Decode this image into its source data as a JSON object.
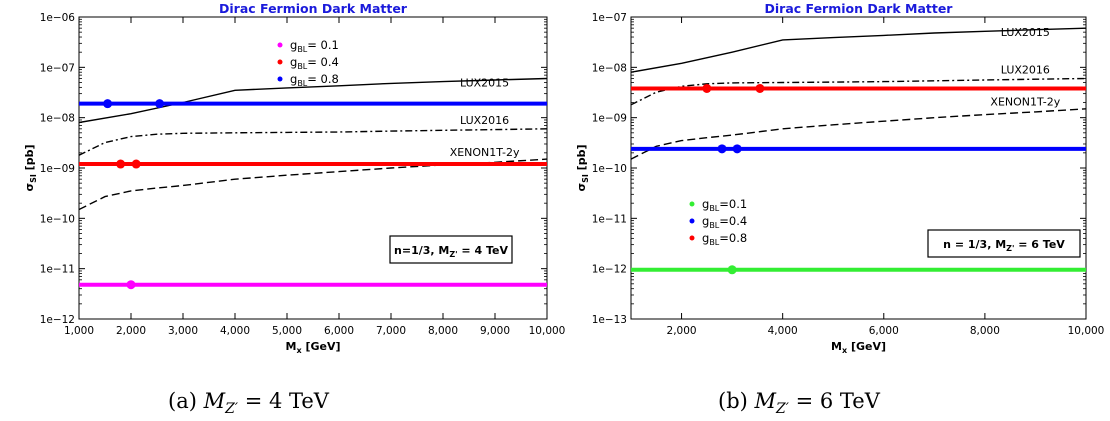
{
  "colors": {
    "title": "#1a1adb",
    "magenta": "#ff00ff",
    "red": "#ff0000",
    "blue": "#0000ff",
    "green": "#33ee33"
  },
  "chart_data": [
    {
      "type": "line",
      "title": "Dirac Fermion Dark Matter",
      "xlabel_main": "M",
      "xlabel_sub": "x",
      "xlabel_unit": " [GeV]",
      "ylabel_main": "σ",
      "ylabel_sub": "SI",
      "ylabel_unit": " [pb]",
      "yscale": "log",
      "xlim": [
        1000,
        10000
      ],
      "ylim_exp": [
        -12,
        -6
      ],
      "x_ticks": [
        1000,
        2000,
        3000,
        4000,
        5000,
        6000,
        7000,
        8000,
        9000,
        10000
      ],
      "x_tick_labels": [
        "1,000",
        "2,000",
        "3,000",
        "4,000",
        "5,000",
        "6,000",
        "7,000",
        "8,000",
        "9,000",
        "10,000"
      ],
      "y_tick_labels": [
        "1e−12",
        "1e−11",
        "1e−10",
        "1e−09",
        "1e−08",
        "1e−07",
        "1e−06"
      ],
      "curves": [
        {
          "name": "LUX2015",
          "style": "solid",
          "label_at": [
            8800,
            4.2e-08
          ],
          "x": [
            1000,
            2000,
            3000,
            4000,
            5000,
            6000,
            7000,
            8000,
            9000,
            10000
          ],
          "y": [
            8e-09,
            1.2e-08,
            2e-08,
            3.5e-08,
            3.9e-08,
            4.3e-08,
            4.8e-08,
            5.2e-08,
            5.6e-08,
            6e-08
          ]
        },
        {
          "name": "LUX2016",
          "style": "dashdot",
          "label_at": [
            8800,
            7.5e-09
          ],
          "x": [
            1000,
            1500,
            2000,
            2500,
            3000,
            4000,
            5000,
            6000,
            7000,
            8000,
            9000,
            10000
          ],
          "y": [
            1.8e-09,
            3.2e-09,
            4.2e-09,
            4.7e-09,
            4.9e-09,
            5e-09,
            5.1e-09,
            5.2e-09,
            5.4e-09,
            5.6e-09,
            5.8e-09,
            6e-09
          ]
        },
        {
          "name": "XENON1T-2y",
          "style": "dashed",
          "label_at": [
            8800,
            1.75e-09
          ],
          "x": [
            1000,
            1500,
            2000,
            2500,
            3000,
            4000,
            5000,
            6000,
            7000,
            8000,
            9000,
            10000
          ],
          "y": [
            1.5e-10,
            2.7e-10,
            3.5e-10,
            4e-10,
            4.5e-10,
            6e-10,
            7.2e-10,
            8.5e-10,
            1e-09,
            1.15e-09,
            1.3e-09,
            1.5e-09
          ]
        }
      ],
      "series": [
        {
          "name": "= 0.1",
          "legend_main": "g",
          "legend_sub": "BL",
          "color": "#ff00ff",
          "y": 4.8e-12,
          "points": [
            2000
          ]
        },
        {
          "name": "= 0.4",
          "legend_main": "g",
          "legend_sub": "BL",
          "color": "#ff0000",
          "y": 1.2e-09,
          "points": [
            1800,
            2100
          ]
        },
        {
          "name": "= 0.8",
          "legend_main": "g",
          "legend_sub": "BL",
          "color": "#0000ff",
          "y": 1.9e-08,
          "points": [
            1550,
            2550
          ]
        }
      ],
      "legend_placement": "top-center",
      "box_main": "n=1/3, M",
      "box_sub": "Z'",
      "box_unit": " = 4 TeV",
      "grid": false
    },
    {
      "type": "line",
      "title": "Dirac Fermion Dark Matter",
      "xlabel_main": "M",
      "xlabel_sub": "x",
      "xlabel_unit": " [GeV]",
      "ylabel_main": "σ",
      "ylabel_sub": "SI",
      "ylabel_unit": " [pb]",
      "yscale": "log",
      "xlim": [
        1000,
        10000
      ],
      "ylim_exp": [
        -13,
        -7
      ],
      "x_ticks": [
        2000,
        4000,
        6000,
        8000,
        10000
      ],
      "x_tick_labels": [
        "2,000",
        "4,000",
        "6,000",
        "8,000",
        "10,000"
      ],
      "y_tick_labels": [
        "1e−13",
        "1e−12",
        "1e−11",
        "1e−10",
        "1e−09",
        "1e−08",
        "1e−07"
      ],
      "curves": [
        {
          "name": "LUX2015",
          "style": "solid",
          "label_at": [
            8800,
            4.2e-08
          ],
          "x": [
            1000,
            2000,
            3000,
            4000,
            5000,
            6000,
            7000,
            8000,
            9000,
            10000
          ],
          "y": [
            8e-09,
            1.2e-08,
            2e-08,
            3.5e-08,
            3.9e-08,
            4.3e-08,
            4.8e-08,
            5.2e-08,
            5.6e-08,
            6e-08
          ]
        },
        {
          "name": "LUX2016",
          "style": "dashdot",
          "label_at": [
            8800,
            7.5e-09
          ],
          "x": [
            1000,
            1500,
            2000,
            2500,
            3000,
            4000,
            5000,
            6000,
            7000,
            8000,
            9000,
            10000
          ],
          "y": [
            1.8e-09,
            3.2e-09,
            4.2e-09,
            4.7e-09,
            4.9e-09,
            5e-09,
            5.1e-09,
            5.2e-09,
            5.4e-09,
            5.6e-09,
            5.8e-09,
            6e-09
          ]
        },
        {
          "name": "XENON1T-2y",
          "style": "dashed",
          "label_at": [
            8800,
            1.75e-09
          ],
          "x": [
            1000,
            1500,
            2000,
            2500,
            3000,
            4000,
            5000,
            6000,
            7000,
            8000,
            9000,
            10000
          ],
          "y": [
            1.5e-10,
            2.7e-10,
            3.5e-10,
            4e-10,
            4.5e-10,
            6e-10,
            7.2e-10,
            8.5e-10,
            1e-09,
            1.15e-09,
            1.3e-09,
            1.5e-09
          ]
        }
      ],
      "series": [
        {
          "name": "=0.1",
          "legend_main": "g",
          "legend_sub": "BL",
          "color": "#33ee33",
          "y": 9.5e-13,
          "points": [
            3000
          ]
        },
        {
          "name": "=0.4",
          "legend_main": "g",
          "legend_sub": "BL",
          "color": "#0000ff",
          "y": 2.4e-10,
          "points": [
            2800,
            3100
          ]
        },
        {
          "name": "=0.8",
          "legend_main": "g",
          "legend_sub": "BL",
          "color": "#ff0000",
          "y": 3.8e-09,
          "points": [
            2500,
            3550
          ]
        }
      ],
      "legend_placement": "lower-left",
      "box_main": "n = 1/3, M",
      "box_sub": "Z'",
      "box_unit": " = 6 TeV",
      "grid": false
    }
  ],
  "captions": [
    {
      "text": "(a) ",
      "math": "M",
      "sub": "Z′",
      "rest": " = 4 TeV"
    },
    {
      "text": "(b) ",
      "math": "M",
      "sub": "Z′",
      "rest": " = 6 TeV"
    }
  ]
}
